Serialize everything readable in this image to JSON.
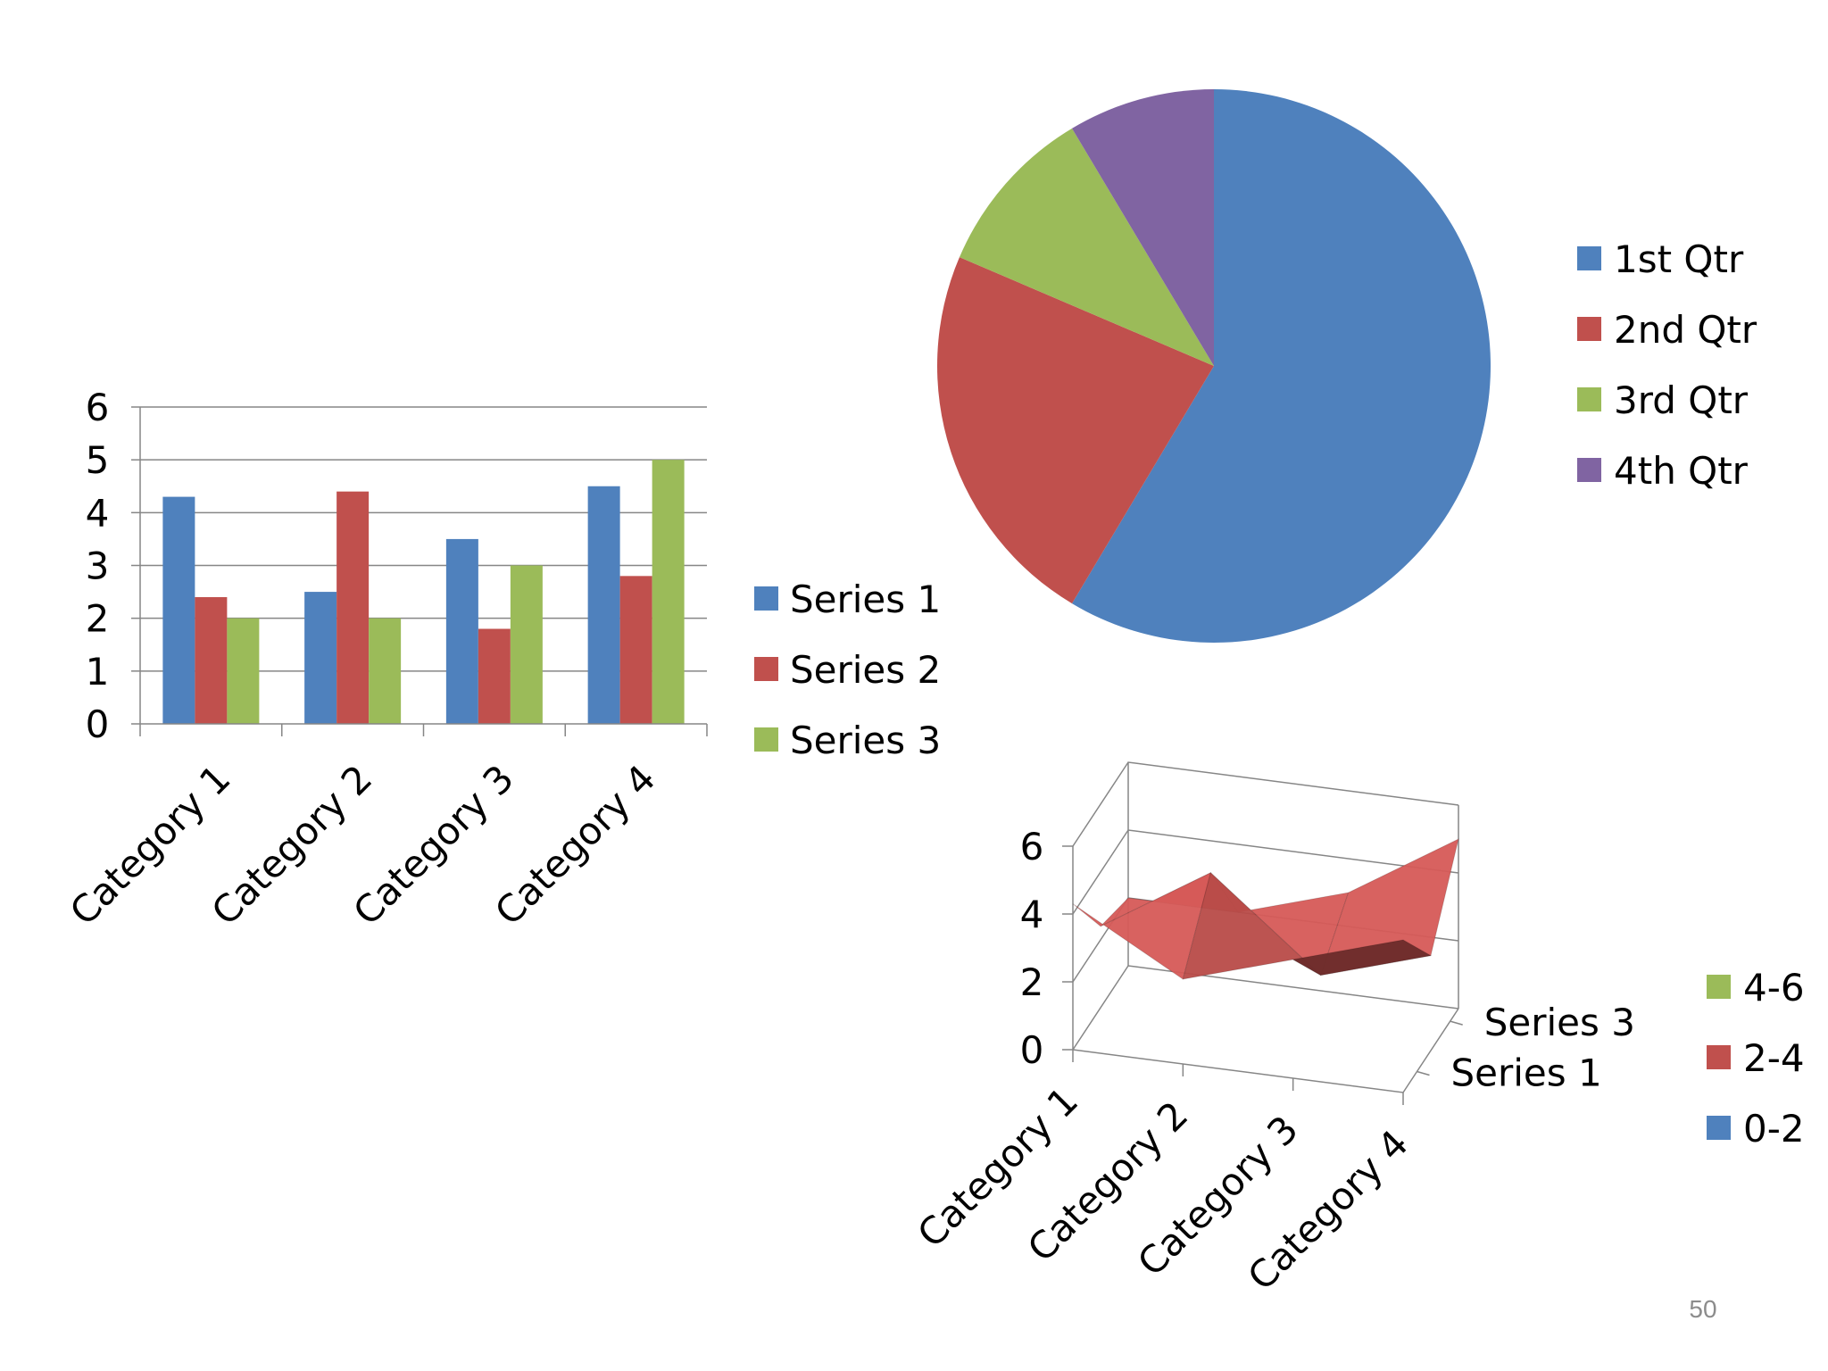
{
  "page_number": "50",
  "colors": {
    "blue": "#4F81BD",
    "red": "#C0504D",
    "green": "#9BBB59",
    "purple": "#8064A2",
    "axis": "#868686",
    "grid": "#868686",
    "text": "#000000",
    "page_number": "#8C8C8C"
  },
  "chart_data": [
    {
      "type": "bar",
      "categories": [
        "Category 1",
        "Category 2",
        "Category 3",
        "Category 4"
      ],
      "series": [
        {
          "name": "Series 1",
          "values": [
            4.3,
            2.5,
            3.5,
            4.5
          ],
          "color": "#4F81BD"
        },
        {
          "name": "Series 2",
          "values": [
            2.4,
            4.4,
            1.8,
            2.8
          ],
          "color": "#C0504D"
        },
        {
          "name": "Series 3",
          "values": [
            2,
            2,
            3,
            5
          ],
          "color": "#9BBB59"
        }
      ],
      "ylim": [
        0,
        6
      ],
      "yticks": [
        "0",
        "1",
        "2",
        "3",
        "4",
        "5",
        "6"
      ],
      "grid": true,
      "legend": "right",
      "title": "",
      "xlabel": "",
      "ylabel": ""
    },
    {
      "type": "pie",
      "labels": [
        "1st Qtr",
        "2nd Qtr",
        "3rd Qtr",
        "4th Qtr"
      ],
      "values": [
        8.2,
        3.2,
        1.4,
        1.2
      ],
      "colors": [
        "#4F81BD",
        "#C0504D",
        "#9BBB59",
        "#8064A2"
      ],
      "legend": "right",
      "title": ""
    },
    {
      "type": "surface",
      "categories": [
        "Category 1",
        "Category 2",
        "Category 3",
        "Category 4"
      ],
      "series": [
        {
          "name": "Series 1",
          "values": [
            4.3,
            2.5,
            3.5,
            4.5
          ]
        },
        {
          "name": "Series 2",
          "values": [
            2.4,
            4.4,
            1.8,
            2.8
          ]
        },
        {
          "name": "Series 3",
          "values": [
            2,
            2,
            3,
            5
          ]
        }
      ],
      "series_axis_labels": [
        "Series 1",
        "Series 3"
      ],
      "zlim": [
        0,
        6
      ],
      "zticks": [
        "0",
        "2",
        "4",
        "6"
      ],
      "bands": [
        {
          "label": "4-6",
          "color": "#9BBB59"
        },
        {
          "label": "2-4",
          "color": "#C0504D"
        },
        {
          "label": "0-2",
          "color": "#4F81BD"
        }
      ],
      "legend": "right",
      "title": ""
    }
  ]
}
